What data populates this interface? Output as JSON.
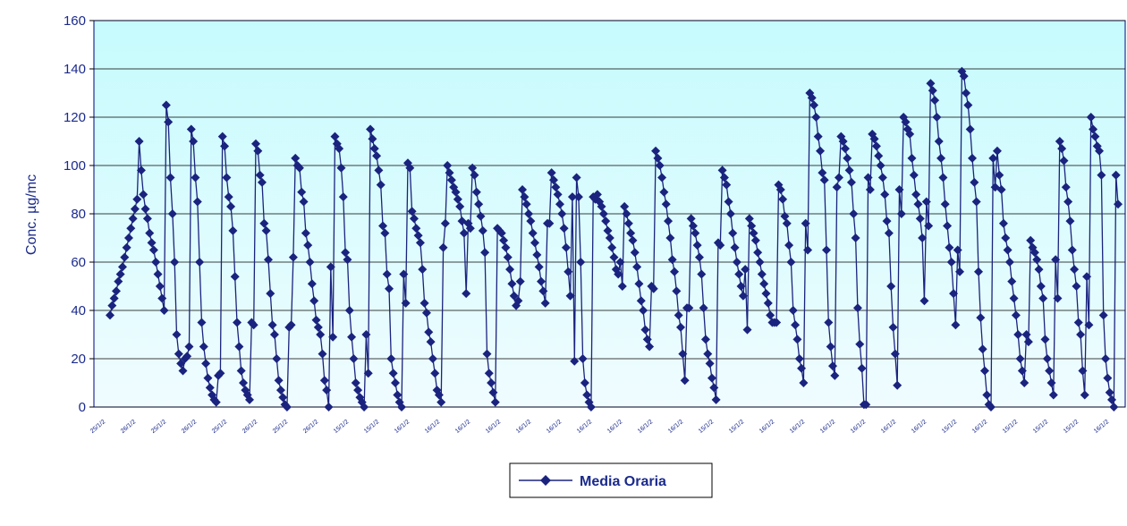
{
  "chart_data": {
    "type": "line",
    "ylabel": "Conc. µg/mc",
    "ylim": [
      0,
      160
    ],
    "yticks": [
      0,
      20,
      40,
      60,
      80,
      100,
      120,
      140,
      160
    ],
    "grid": true,
    "background": "gradient-cyan",
    "line_color": "#1a237e",
    "marker": "diamond",
    "legend_position": "bottom-center",
    "x_tick_labels": [
      "25/1/2",
      "26/1/2",
      "25/1/2",
      "26/1/2",
      "25/1/2",
      "26/1/2",
      "25/1/2",
      "26/1/2",
      "15/1/2",
      "15/1/2",
      "16/1/2",
      "16/1/2",
      "16/1/2",
      "16/1/2",
      "16/1/2",
      "16/1/2",
      "16/1/2",
      "16/1/2",
      "16/1/2",
      "16/1/2",
      "15/1/2",
      "15/1/2",
      "16/1/2",
      "16/1/2",
      "16/1/2",
      "16/1/2",
      "16/1/2",
      "16/1/2",
      "15/1/2",
      "16/1/2",
      "15/1/2",
      "15/1/2",
      "15/1/2",
      "16/1/2"
    ],
    "series": [
      {
        "name": "Media Oraria",
        "values": [
          38,
          42,
          45,
          48,
          52,
          55,
          58,
          62,
          66,
          70,
          74,
          78,
          82,
          86,
          110,
          98,
          88,
          82,
          78,
          72,
          68,
          65,
          60,
          55,
          50,
          45,
          40,
          125,
          118,
          95,
          80,
          60,
          30,
          22,
          18,
          15,
          20,
          21,
          25,
          115,
          110,
          95,
          85,
          60,
          35,
          25,
          18,
          12,
          8,
          5,
          3,
          2,
          13,
          14,
          112,
          108,
          95,
          87,
          83,
          73,
          54,
          35,
          25,
          15,
          10,
          7,
          5,
          3,
          35,
          34,
          109,
          106,
          96,
          93,
          76,
          73,
          61,
          47,
          34,
          30,
          20,
          11,
          7,
          4,
          1,
          0,
          33,
          34,
          62,
          103,
          100,
          99,
          89,
          85,
          72,
          67,
          60,
          51,
          44,
          36,
          33,
          30,
          22,
          11,
          7,
          0,
          58,
          29,
          112,
          109,
          107,
          99,
          87,
          64,
          61,
          40,
          29,
          20,
          10,
          7,
          4,
          2,
          0,
          30,
          14,
          115,
          111,
          107,
          104,
          98,
          92,
          75,
          72,
          55,
          49,
          20,
          14,
          10,
          5,
          2,
          0,
          55,
          43,
          101,
          99,
          81,
          78,
          74,
          71,
          68,
          57,
          43,
          39,
          31,
          27,
          20,
          14,
          7,
          5,
          2,
          66,
          76,
          100,
          97,
          94,
          91,
          89,
          86,
          83,
          77,
          72,
          47,
          76,
          74,
          99,
          96,
          89,
          84,
          79,
          73,
          64,
          22,
          14,
          10,
          6,
          2,
          74,
          73,
          72,
          69,
          66,
          62,
          57,
          51,
          46,
          42,
          44,
          52,
          90,
          87,
          84,
          80,
          77,
          72,
          68,
          63,
          58,
          52,
          48,
          43,
          76,
          76,
          97,
          94,
          91,
          88,
          84,
          80,
          74,
          66,
          56,
          46,
          87,
          19,
          95,
          87,
          60,
          20,
          10,
          5,
          2,
          0,
          87,
          86,
          88,
          85,
          83,
          80,
          77,
          73,
          70,
          66,
          62,
          57,
          55,
          60,
          50,
          83,
          80,
          76,
          72,
          69,
          64,
          58,
          51,
          44,
          40,
          32,
          28,
          25,
          50,
          49,
          106,
          103,
          100,
          95,
          89,
          84,
          77,
          70,
          61,
          56,
          48,
          38,
          33,
          22,
          11,
          41,
          41,
          78,
          75,
          72,
          67,
          62,
          55,
          41,
          28,
          22,
          18,
          12,
          8,
          3,
          68,
          67,
          98,
          95,
          92,
          85,
          80,
          72,
          66,
          60,
          55,
          50,
          46,
          57,
          32,
          78,
          75,
          72,
          69,
          64,
          60,
          55,
          51,
          47,
          43,
          38,
          35,
          35,
          35,
          92,
          90,
          86,
          79,
          76,
          67,
          60,
          40,
          34,
          28,
          20,
          16,
          10,
          76,
          65,
          130,
          128,
          125,
          120,
          112,
          106,
          97,
          94,
          65,
          35,
          25,
          17,
          13,
          91,
          95,
          112,
          110,
          107,
          103,
          98,
          93,
          80,
          70,
          41,
          26,
          16,
          1,
          1,
          95,
          90,
          113,
          111,
          108,
          104,
          100,
          95,
          88,
          77,
          72,
          50,
          33,
          22,
          9,
          90,
          80,
          120,
          118,
          115,
          113,
          103,
          96,
          88,
          84,
          78,
          70,
          44,
          85,
          75,
          134,
          131,
          127,
          120,
          110,
          103,
          95,
          84,
          75,
          66,
          60,
          47,
          34,
          65,
          56,
          139,
          137,
          130,
          125,
          115,
          103,
          93,
          85,
          56,
          37,
          24,
          15,
          5,
          1,
          0,
          103,
          91,
          106,
          96,
          90,
          76,
          70,
          65,
          60,
          52,
          45,
          38,
          30,
          20,
          15,
          10,
          30,
          27,
          69,
          66,
          64,
          61,
          57,
          50,
          45,
          28,
          20,
          15,
          10,
          5,
          61,
          45,
          110,
          107,
          102,
          91,
          85,
          77,
          65,
          57,
          50,
          35,
          30,
          15,
          5,
          54,
          34,
          120,
          115,
          112,
          108,
          106,
          96,
          38,
          20,
          12,
          6,
          3,
          0,
          96,
          84
        ]
      }
    ]
  },
  "legend": {
    "label": "Media Oraria"
  }
}
